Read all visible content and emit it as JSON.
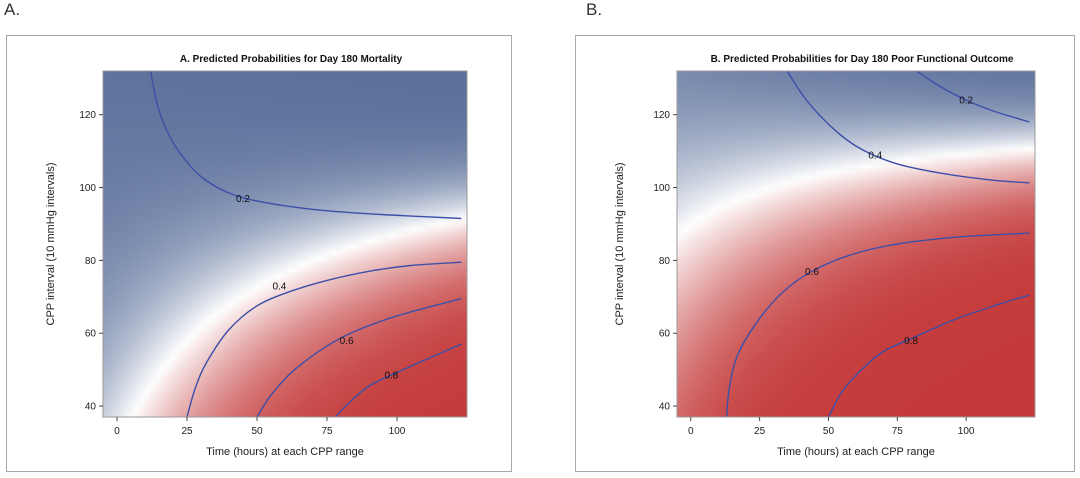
{
  "panel_letters": [
    "A.",
    "B."
  ],
  "chart_data": [
    {
      "type": "heatmap",
      "subtype": "contour",
      "title": "A. Predicted Probabilities for Day 180 Mortality",
      "xlabel": "Time (hours) at each CPP range",
      "ylabel": "CPP interval (10 mmHg intervals)",
      "xlim": [
        -5,
        125
      ],
      "ylim": [
        37,
        132
      ],
      "x_ticks": [
        0,
        25,
        50,
        75,
        100
      ],
      "y_ticks": [
        40,
        60,
        80,
        100,
        120
      ],
      "colors": {
        "low": "#5a6f9a",
        "mid": "#ffffff",
        "high": "#c43a3a"
      },
      "contours": [
        {
          "level": "0.2",
          "label_at": [
            45,
            97
          ],
          "points": [
            [
              12,
              132
            ],
            [
              14,
              124
            ],
            [
              17,
              117
            ],
            [
              22,
              110
            ],
            [
              30,
              103
            ],
            [
              40,
              98.5
            ],
            [
              52,
              96
            ],
            [
              70,
              94
            ],
            [
              90,
              92.8
            ],
            [
              110,
              92
            ],
            [
              123,
              91.5
            ]
          ]
        },
        {
          "level": "0.4",
          "label_at": [
            58,
            73
          ],
          "points": [
            [
              25,
              37
            ],
            [
              28,
              45
            ],
            [
              32,
              52
            ],
            [
              40,
              61
            ],
            [
              50,
              67.5
            ],
            [
              62,
              71.5
            ],
            [
              75,
              74.5
            ],
            [
              90,
              77
            ],
            [
              105,
              78.6
            ],
            [
              123,
              79.5
            ]
          ]
        },
        {
          "level": "0.6",
          "label_at": [
            82,
            58
          ],
          "points": [
            [
              50,
              37
            ],
            [
              55,
              43
            ],
            [
              62,
              49
            ],
            [
              72,
              55
            ],
            [
              82,
              59.5
            ],
            [
              95,
              63.5
            ],
            [
              108,
              66.5
            ],
            [
              123,
              69.5
            ]
          ]
        },
        {
          "level": "0.8",
          "label_at": [
            98,
            48.5
          ],
          "points": [
            [
              78,
              37
            ],
            [
              83,
              41
            ],
            [
              90,
              45.5
            ],
            [
              98,
              48.5
            ],
            [
              108,
              52
            ],
            [
              117,
              55
            ],
            [
              123,
              57
            ]
          ]
        }
      ]
    },
    {
      "type": "heatmap",
      "subtype": "contour",
      "title": "B. Predicted Probabilities for Day 180 Poor Functional Outcome",
      "xlabel": "Time (hours) at each CPP range",
      "ylabel": "CPP interval (10 mmHg intervals)",
      "xlim": [
        -5,
        125
      ],
      "ylim": [
        37,
        132
      ],
      "x_ticks": [
        0,
        25,
        50,
        75,
        100
      ],
      "y_ticks": [
        40,
        60,
        80,
        100,
        120
      ],
      "colors": {
        "low": "#5a6f9a",
        "mid": "#ffffff",
        "high": "#c43a3a"
      },
      "contours": [
        {
          "level": "0.2",
          "label_at": [
            100,
            124
          ],
          "points": [
            [
              82,
              132
            ],
            [
              90,
              128
            ],
            [
              100,
              124
            ],
            [
              110,
              121
            ],
            [
              123,
              118
            ]
          ]
        },
        {
          "level": "0.4",
          "label_at": [
            67,
            109
          ],
          "points": [
            [
              35,
              132
            ],
            [
              42,
              124
            ],
            [
              52,
              116
            ],
            [
              62,
              110.5
            ],
            [
              75,
              106.5
            ],
            [
              92,
              103.8
            ],
            [
              110,
              102
            ],
            [
              123,
              101.3
            ]
          ]
        },
        {
          "level": "0.6",
          "label_at": [
            44,
            77
          ],
          "points": [
            [
              13,
              37
            ],
            [
              14,
              45
            ],
            [
              17,
              54
            ],
            [
              24,
              63
            ],
            [
              33,
              71
            ],
            [
              44,
              77
            ],
            [
              58,
              81.5
            ],
            [
              75,
              84.5
            ],
            [
              95,
              86.3
            ],
            [
              110,
              87
            ],
            [
              123,
              87.5
            ]
          ]
        },
        {
          "level": "0.8",
          "label_at": [
            80,
            58
          ],
          "points": [
            [
              50,
              37
            ],
            [
              55,
              44
            ],
            [
              62,
              50
            ],
            [
              70,
              55
            ],
            [
              80,
              58.5
            ],
            [
              95,
              63.5
            ],
            [
              110,
              67.5
            ],
            [
              123,
              70.5
            ]
          ]
        }
      ]
    }
  ]
}
